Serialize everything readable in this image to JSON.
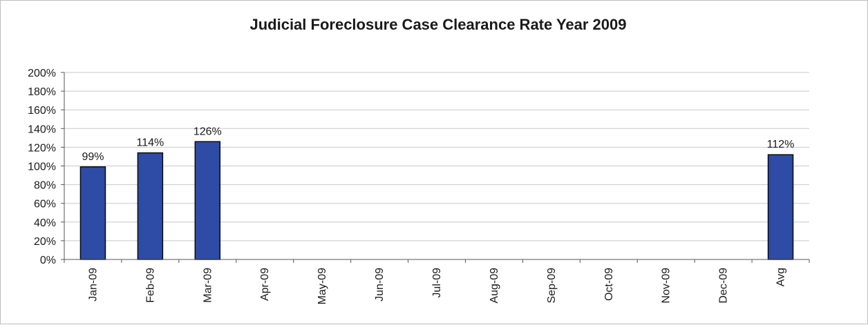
{
  "chart_data": {
    "type": "bar",
    "title": "Judicial Foreclosure Case Clearance Rate Year 2009",
    "xlabel": "",
    "ylabel": "",
    "categories": [
      "Jan-09",
      "Feb-09",
      "Mar-09",
      "Apr-09",
      "May-09",
      "Jun-09",
      "Jul-09",
      "Aug-09",
      "Sep-09",
      "Oct-09",
      "Nov-09",
      "Dec-09",
      "Avg"
    ],
    "values": [
      99,
      114,
      126,
      null,
      null,
      null,
      null,
      null,
      null,
      null,
      null,
      null,
      112
    ],
    "data_labels": [
      "99%",
      "114%",
      "126%",
      "",
      "",
      "",
      "",
      "",
      "",
      "",
      "",
      "",
      "112%"
    ],
    "y_ticks": [
      "0%",
      "20%",
      "40%",
      "60%",
      "80%",
      "100%",
      "120%",
      "140%",
      "160%",
      "180%",
      "200%"
    ],
    "ylim": [
      0,
      200
    ],
    "grid": true,
    "legend": "none",
    "bar_color": "#2e4ba6",
    "bar_edge_color": "#0a0a0a"
  }
}
